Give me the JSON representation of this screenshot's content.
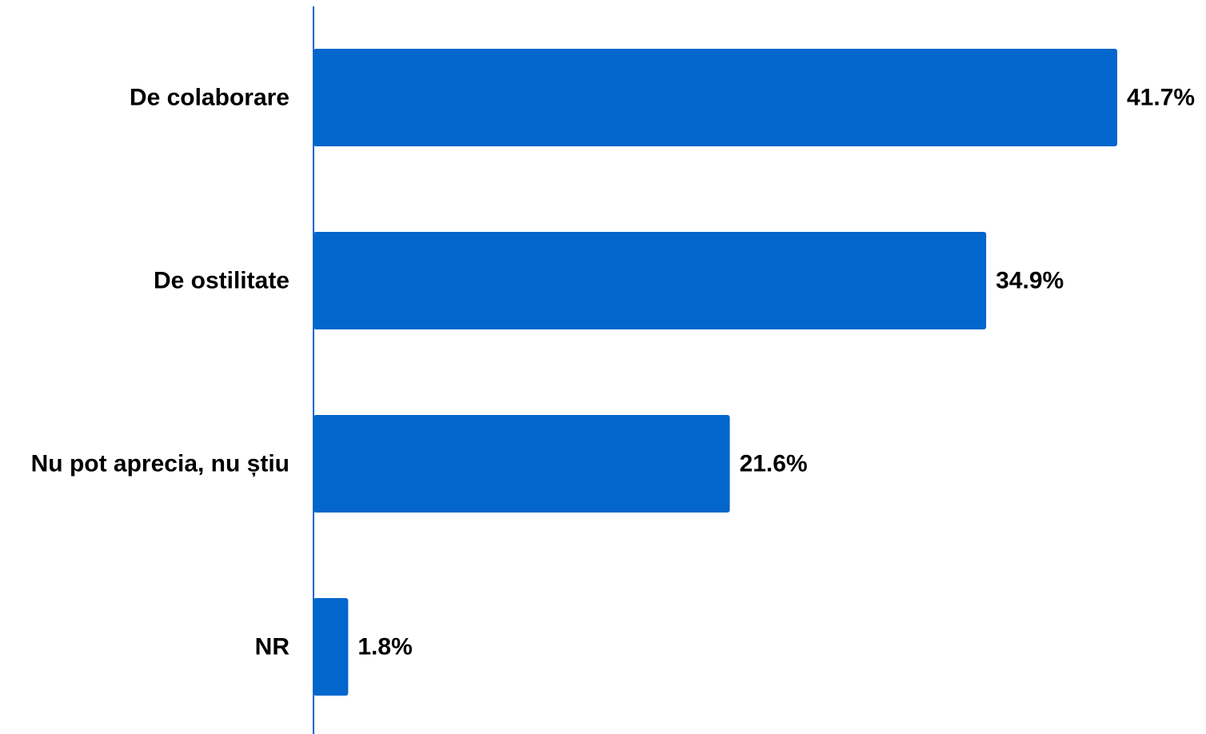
{
  "chart_data": {
    "type": "bar",
    "orientation": "horizontal",
    "categories": [
      "De colaborare",
      "De ostilitate",
      "Nu pot aprecia, nu știu",
      "NR"
    ],
    "values": [
      41.7,
      34.9,
      21.6,
      1.8
    ],
    "value_labels": [
      "41.7%",
      "34.9%",
      "21.6%",
      "1.8%"
    ],
    "value_suffix": "%",
    "title": "",
    "xlabel": "",
    "ylabel": "",
    "xlim": [
      0,
      41.7
    ],
    "grid": false,
    "legend": "none",
    "colors": {
      "bar": "#0366CC",
      "axis": "#0366CC",
      "text": "#000000"
    }
  }
}
